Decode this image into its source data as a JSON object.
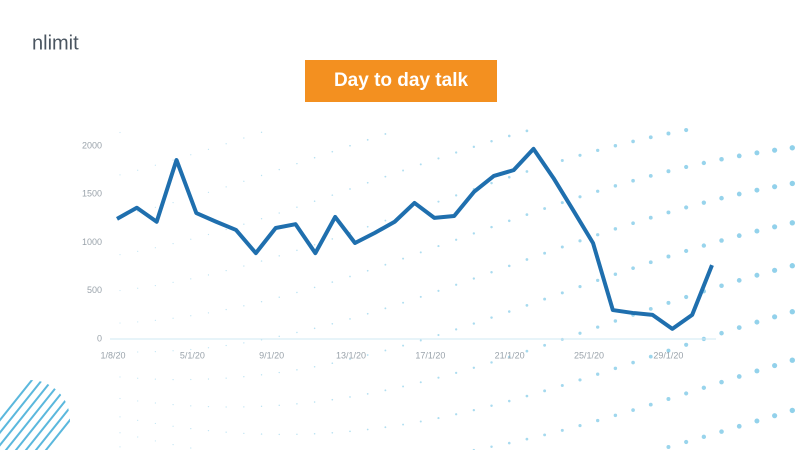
{
  "logo": "nlimit",
  "chart_data": {
    "type": "line",
    "title": "Day to day talk",
    "categories": [
      "1/8/20",
      null,
      null,
      null,
      "5/1/20",
      null,
      null,
      null,
      "9/1/20",
      null,
      null,
      null,
      "13/1/20",
      null,
      null,
      null,
      "17/1/20",
      null,
      null,
      null,
      "21/1/20",
      null,
      null,
      null,
      "25/1/20",
      null,
      null,
      null,
      "29/1/20",
      null,
      null
    ],
    "series": [
      {
        "color": "#1f6fae",
        "values": [
          1245,
          1360,
          1215,
          1855,
          1305,
          1215,
          1130,
          890,
          1150,
          1190,
          890,
          1265,
          995,
          1100,
          1215,
          1410,
          1255,
          1275,
          1525,
          1690,
          1750,
          1970,
          1670,
          1335,
          995,
          300,
          270,
          250,
          105,
          250,
          765
        ]
      }
    ],
    "ylim": [
      0,
      2000
    ],
    "yticks": [
      0,
      500,
      1000,
      1500,
      2000
    ],
    "title_color": "#f39020"
  }
}
